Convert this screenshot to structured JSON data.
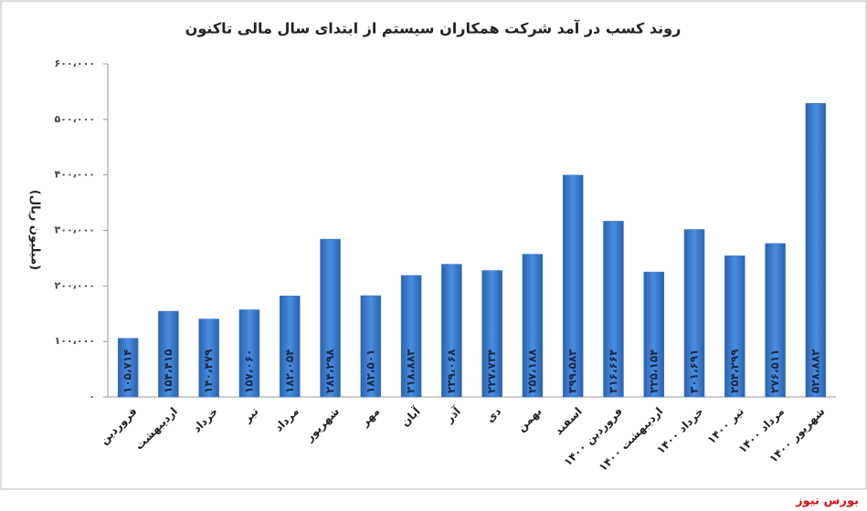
{
  "chart_data": {
    "type": "bar",
    "title": "روند کسب در آمد شرکت همکاران سیستم از ابتدای سال مالی تاکنون",
    "y_label": "(میلیون ریال)",
    "source": "بورس نیوز",
    "categories": [
      "فروردین",
      "اردیبهشت",
      "خرداد",
      "تیر",
      "مرداد",
      "شهریور",
      "مهر",
      "آبان",
      "آذر",
      "دی",
      "بهمن",
      "اسفند",
      "فروردین ۱۴۰۰",
      "اردیبهشت ۱۴۰۰",
      "خرداد ۱۴۰۰",
      "تیر ۱۴۰۰",
      "مرداد ۱۴۰۰",
      "شهریور ۱۴۰۰"
    ],
    "values": [
      105714,
      154415,
      140479,
      157060,
      182054,
      284298,
      182501,
      218883,
      239068,
      227734,
      257188,
      399583,
      316664,
      225154,
      301691,
      254299,
      276511,
      528882
    ],
    "value_labels": [
      "۱۰۵،۷۱۴",
      "۱۵۴،۴۱۵",
      "۱۴۰،۴۷۹",
      "۱۵۷،۰۶۰",
      "۱۸۲،۰۵۴",
      "۲۸۴،۲۹۸",
      "۱۸۲،۵۰۱",
      "۲۱۸،۸۸۳",
      "۲۳۹،۰۶۸",
      "۲۲۷،۷۳۴",
      "۲۵۷،۱۸۸",
      "۳۹۹،۵۸۳",
      "۳۱۶،۶۶۴",
      "۲۲۵،۱۵۴",
      "۳۰۱،۶۹۱",
      "۲۵۴،۲۹۹",
      "۲۷۶،۵۱۱",
      "۵۲۸،۸۸۲"
    ],
    "color": "#3b7dd0",
    "ylim": [
      0,
      600000
    ],
    "yticks": [
      {
        "value": 0,
        "label": "۰"
      },
      {
        "value": 100000,
        "label": "۱۰۰،۰۰۰"
      },
      {
        "value": 200000,
        "label": "۲۰۰،۰۰۰"
      },
      {
        "value": 300000,
        "label": "۳۰۰،۰۰۰"
      },
      {
        "value": 400000,
        "label": "۴۰۰،۰۰۰"
      },
      {
        "value": 500000,
        "label": "۵۰۰،۰۰۰"
      },
      {
        "value": 600000,
        "label": "۶۰۰،۰۰۰"
      }
    ],
    "grid": false
  }
}
